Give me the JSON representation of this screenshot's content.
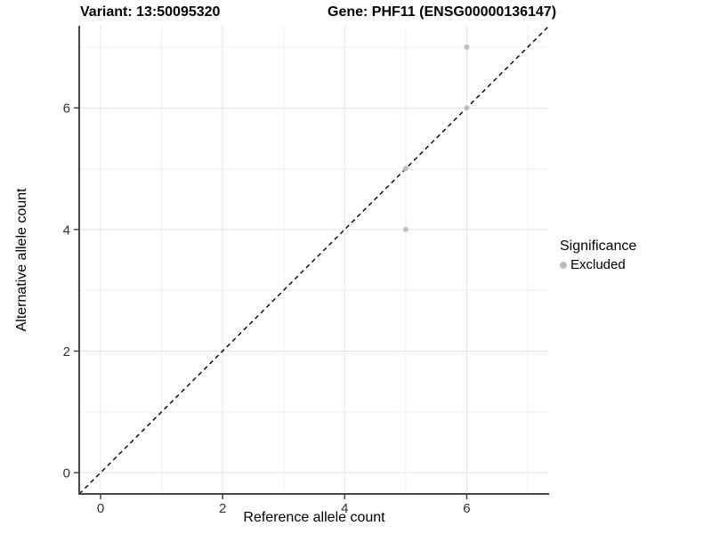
{
  "header": {
    "variant_title": "Variant: 13:50095320",
    "gene_title": "Gene: PHF11 (ENSG00000136147)"
  },
  "chart_data": {
    "type": "scatter",
    "title_left": "Variant: 13:50095320",
    "title_right": "Gene: PHF11 (ENSG00000136147)",
    "xlabel": "Reference allele count",
    "ylabel": "Alternative allele count",
    "xlim": [
      -0.35,
      7.35
    ],
    "ylim": [
      -0.35,
      7.35
    ],
    "x_ticks": [
      0,
      2,
      4,
      6
    ],
    "y_ticks": [
      0,
      2,
      4,
      6
    ],
    "grid_values": [
      0,
      1,
      2,
      3,
      4,
      5,
      6,
      7
    ],
    "grid_on": true,
    "points": [
      {
        "x": 5,
        "y": 4,
        "significance": "Excluded"
      },
      {
        "x": 5,
        "y": 5,
        "significance": "Excluded"
      },
      {
        "x": 6,
        "y": 6,
        "significance": "Excluded"
      },
      {
        "x": 6,
        "y": 7,
        "significance": "Excluded"
      }
    ],
    "identity_line": {
      "style": "dashed",
      "slope": 1,
      "intercept": 0,
      "color": "#000000"
    },
    "point_color": "#bdbdbd",
    "point_radius": 3,
    "colors": {
      "grid_major": "#e4e4e4",
      "grid_minor": "#efefef",
      "axis_line": "#464646",
      "tick_label": "#303030"
    },
    "legend": {
      "title": "Significance",
      "position": "right",
      "items": [
        {
          "label": "Excluded",
          "color": "#bdbdbd"
        }
      ]
    }
  }
}
